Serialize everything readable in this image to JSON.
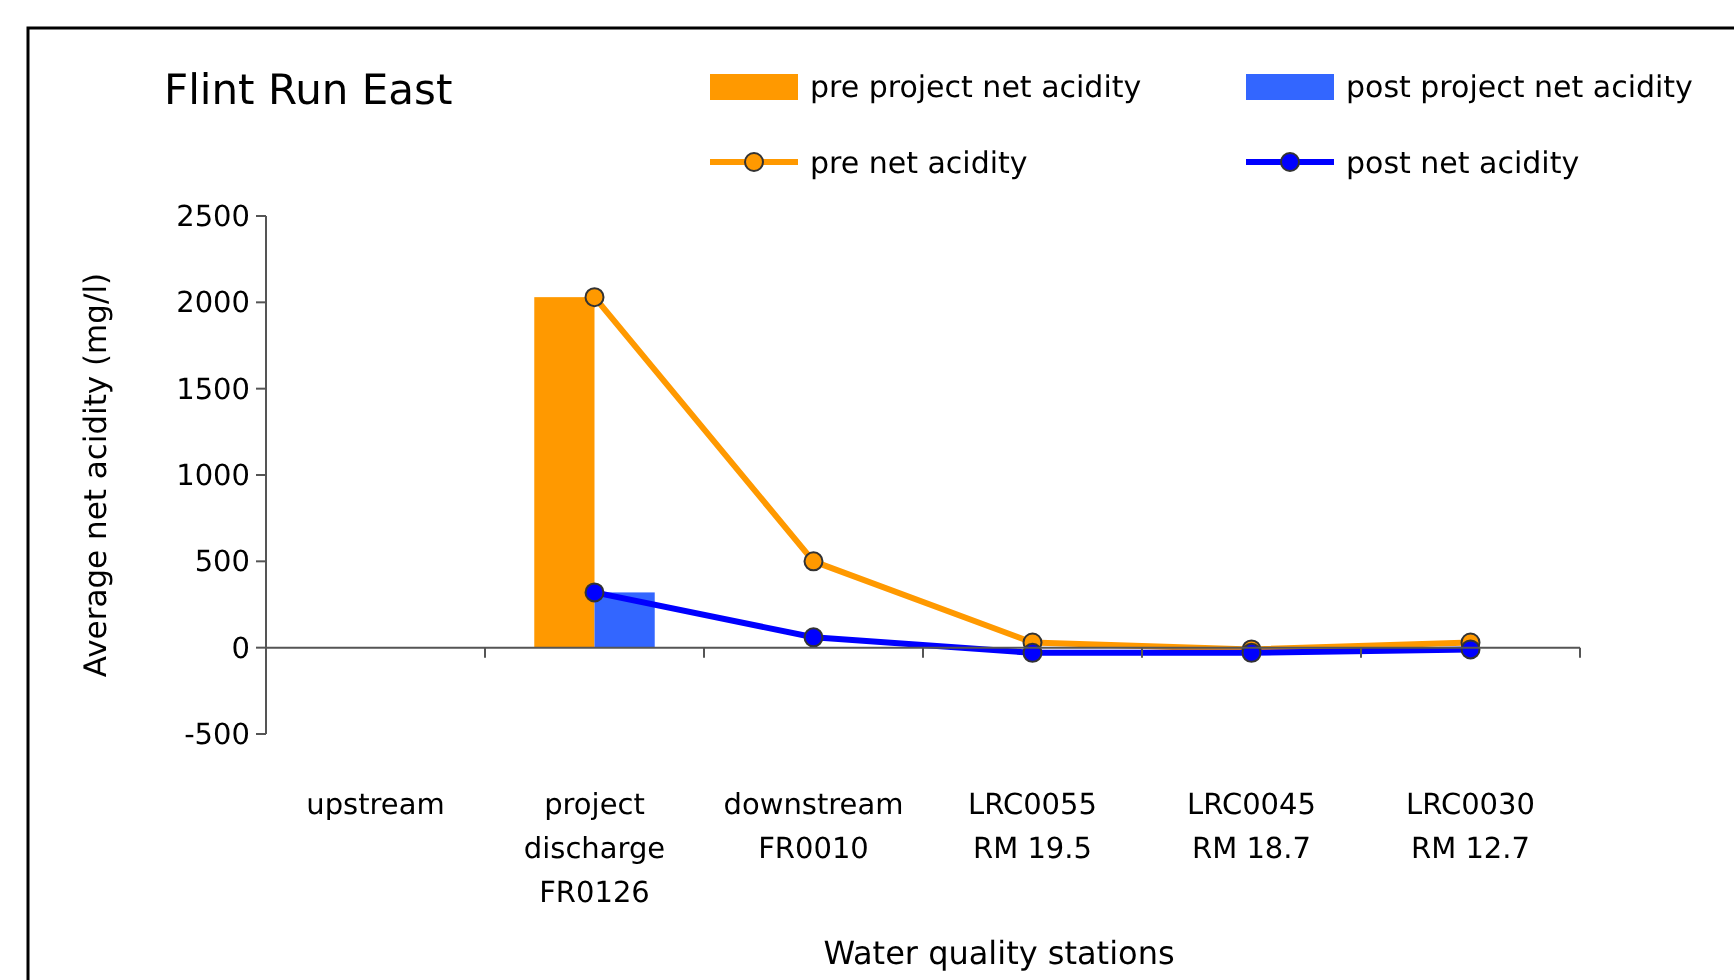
{
  "chart_data": {
    "type": "bar",
    "title": "Flint Run East",
    "xlabel": "Water quality stations",
    "ylabel": "Average net acidity  (mg/l)",
    "categories": [
      "upstream",
      "project\ndischarge\nFR0126",
      "downstream\nFR0010",
      "LRC0055\nRM 19.5",
      "LRC0045\nRM 18.7",
      "LRC0030\nRM 12.7"
    ],
    "series": [
      {
        "name": "pre project net acidity",
        "color": "#ff9900",
        "values": [
          null,
          2030,
          null,
          null,
          null,
          null
        ]
      },
      {
        "name": "post project net acidity",
        "color": "#3366ff",
        "values": [
          null,
          320,
          null,
          null,
          null,
          null
        ]
      },
      {
        "name": "pre net acidity",
        "type": "line",
        "color": "#ff9900",
        "marker": "circle",
        "values": [
          null,
          2030,
          500,
          30,
          -10,
          30
        ]
      },
      {
        "name": "post net acidity",
        "type": "line",
        "color": "#0000ff",
        "marker": "circle",
        "values": [
          null,
          320,
          60,
          -30,
          -30,
          -10
        ]
      }
    ],
    "ylim": [
      -500,
      2500
    ],
    "yticks": [
      -500,
      0,
      500,
      1000,
      1500,
      2000,
      2500
    ],
    "legend": "top right"
  }
}
